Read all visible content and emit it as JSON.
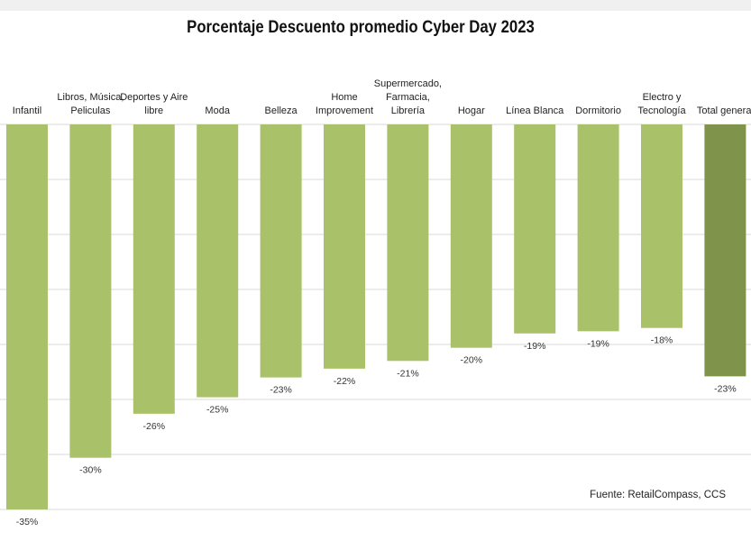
{
  "chart_data": {
    "type": "bar",
    "title": "Porcentaje Descuento promedio Cyber Day 2023",
    "categories": [
      [
        "Infantil"
      ],
      [
        "Libros, Música,",
        "Peliculas"
      ],
      [
        "Deportes y Aire",
        "libre"
      ],
      [
        "Moda"
      ],
      [
        "Belleza"
      ],
      [
        "Home",
        "Improvement"
      ],
      [
        "Supermercado,",
        "Farmacia,",
        "Librería"
      ],
      [
        "Hogar"
      ],
      [
        "Línea Blanca"
      ],
      [
        "Dormitorio"
      ],
      [
        "Electro y",
        "Tecnología"
      ],
      [
        "Total general"
      ]
    ],
    "values": [
      -35,
      -30.3,
      -26.3,
      -24.8,
      -23,
      -22.2,
      -21.5,
      -20.3,
      -19,
      -18.8,
      -18.5,
      -22.9
    ],
    "labels": [
      "-35%",
      "-30%",
      "-26%",
      "-25%",
      "-23%",
      "-22%",
      "-21%",
      "-20%",
      "-19%",
      "-19%",
      "-18%",
      "-23%"
    ],
    "ylim": [
      -35,
      0
    ],
    "grid_step": 5,
    "grid": true,
    "colors": {
      "bar": "#a9c168",
      "total": "#7f944a",
      "grid": "#d9d9d9"
    },
    "xlabel": "",
    "ylabel": ""
  },
  "source": "Fuente: RetailCompass, CCS"
}
